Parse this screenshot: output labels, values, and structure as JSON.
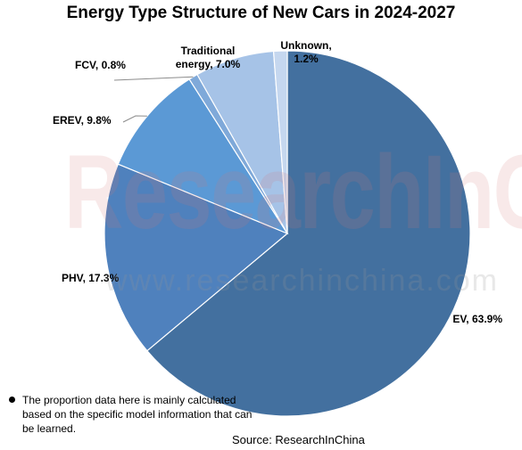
{
  "chart_data": {
    "type": "pie",
    "title": "Energy Type Structure of New Cars in 2024-2027",
    "slices": [
      {
        "label": "EV, 63.9%",
        "value": 63.9,
        "color": "#43709F"
      },
      {
        "label": "PHV, 17.3%",
        "value": 17.3,
        "color": "#4F81BD"
      },
      {
        "label": "EREV, 9.8%",
        "value": 9.8,
        "color": "#5B99D5"
      },
      {
        "label": "FCV, 0.8%",
        "value": 0.8,
        "color": "#7FA9D9"
      },
      {
        "label": "Traditional energy, 7.0%",
        "value": 7.0,
        "color": "#A6C3E7"
      },
      {
        "label": "Unknown, 1.2%",
        "value": 1.2,
        "color": "#C5D7EF"
      }
    ]
  },
  "watermark": {
    "main": "ResearchInChina",
    "url": "www.researchinchina.com"
  },
  "footnote": "The proportion data here is mainly calculated based on the specific model information that can be learned.",
  "source": "Source: ResearchInChina"
}
